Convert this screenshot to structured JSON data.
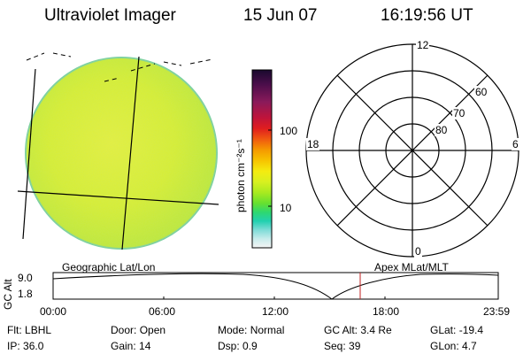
{
  "header": {
    "instrument": "Ultraviolet Imager",
    "date": "15 Jun 07",
    "time": "16:19:56 UT"
  },
  "colorbar": {
    "unit_label": "photon cm⁻²s⁻¹",
    "ticks": [
      "100",
      "10"
    ],
    "colors": [
      "#1a0a2e",
      "#4a0d4a",
      "#8a1a5a",
      "#c0143a",
      "#e01e1e",
      "#f05a10",
      "#f59a00",
      "#f7c400",
      "#f4ec10",
      "#d8f020",
      "#a8ea20",
      "#66e030",
      "#2ed870",
      "#22d0b0",
      "#7fdcd8",
      "#c8ecec",
      "#f4f4f4"
    ]
  },
  "polar_plot": {
    "mlt_labels": {
      "top": "12",
      "left": "18",
      "right": "6",
      "bottom": "0"
    },
    "lat_labels": [
      "60",
      "70",
      "80"
    ]
  },
  "timeline": {
    "left_label": "Geographic Lat/Lon",
    "right_label": "Apex MLat/MLT",
    "axis_title": "GC Alt",
    "y_ticks": [
      "9.0",
      "1.8"
    ],
    "x_ticks": [
      "00:00",
      "06:00",
      "12:00",
      "18:00",
      "23:59"
    ]
  },
  "info": {
    "row1": [
      {
        "label": "Flt:",
        "value": "LBHL"
      },
      {
        "label": "Door:",
        "value": "Open"
      },
      {
        "label": "Mode:",
        "value": "Normal"
      },
      {
        "label": "GC Alt:",
        "value": "3.4 Re"
      },
      {
        "label": "GLat:",
        "value": "-19.4"
      }
    ],
    "row2": [
      {
        "label": "IP:",
        "value": "36.0"
      },
      {
        "label": "Gain:",
        "value": "14"
      },
      {
        "label": "Dsp:",
        "value": "0.9"
      },
      {
        "label": "Seq:",
        "value": "39"
      },
      {
        "label": "GLon:",
        "value": "4.7"
      }
    ]
  }
}
